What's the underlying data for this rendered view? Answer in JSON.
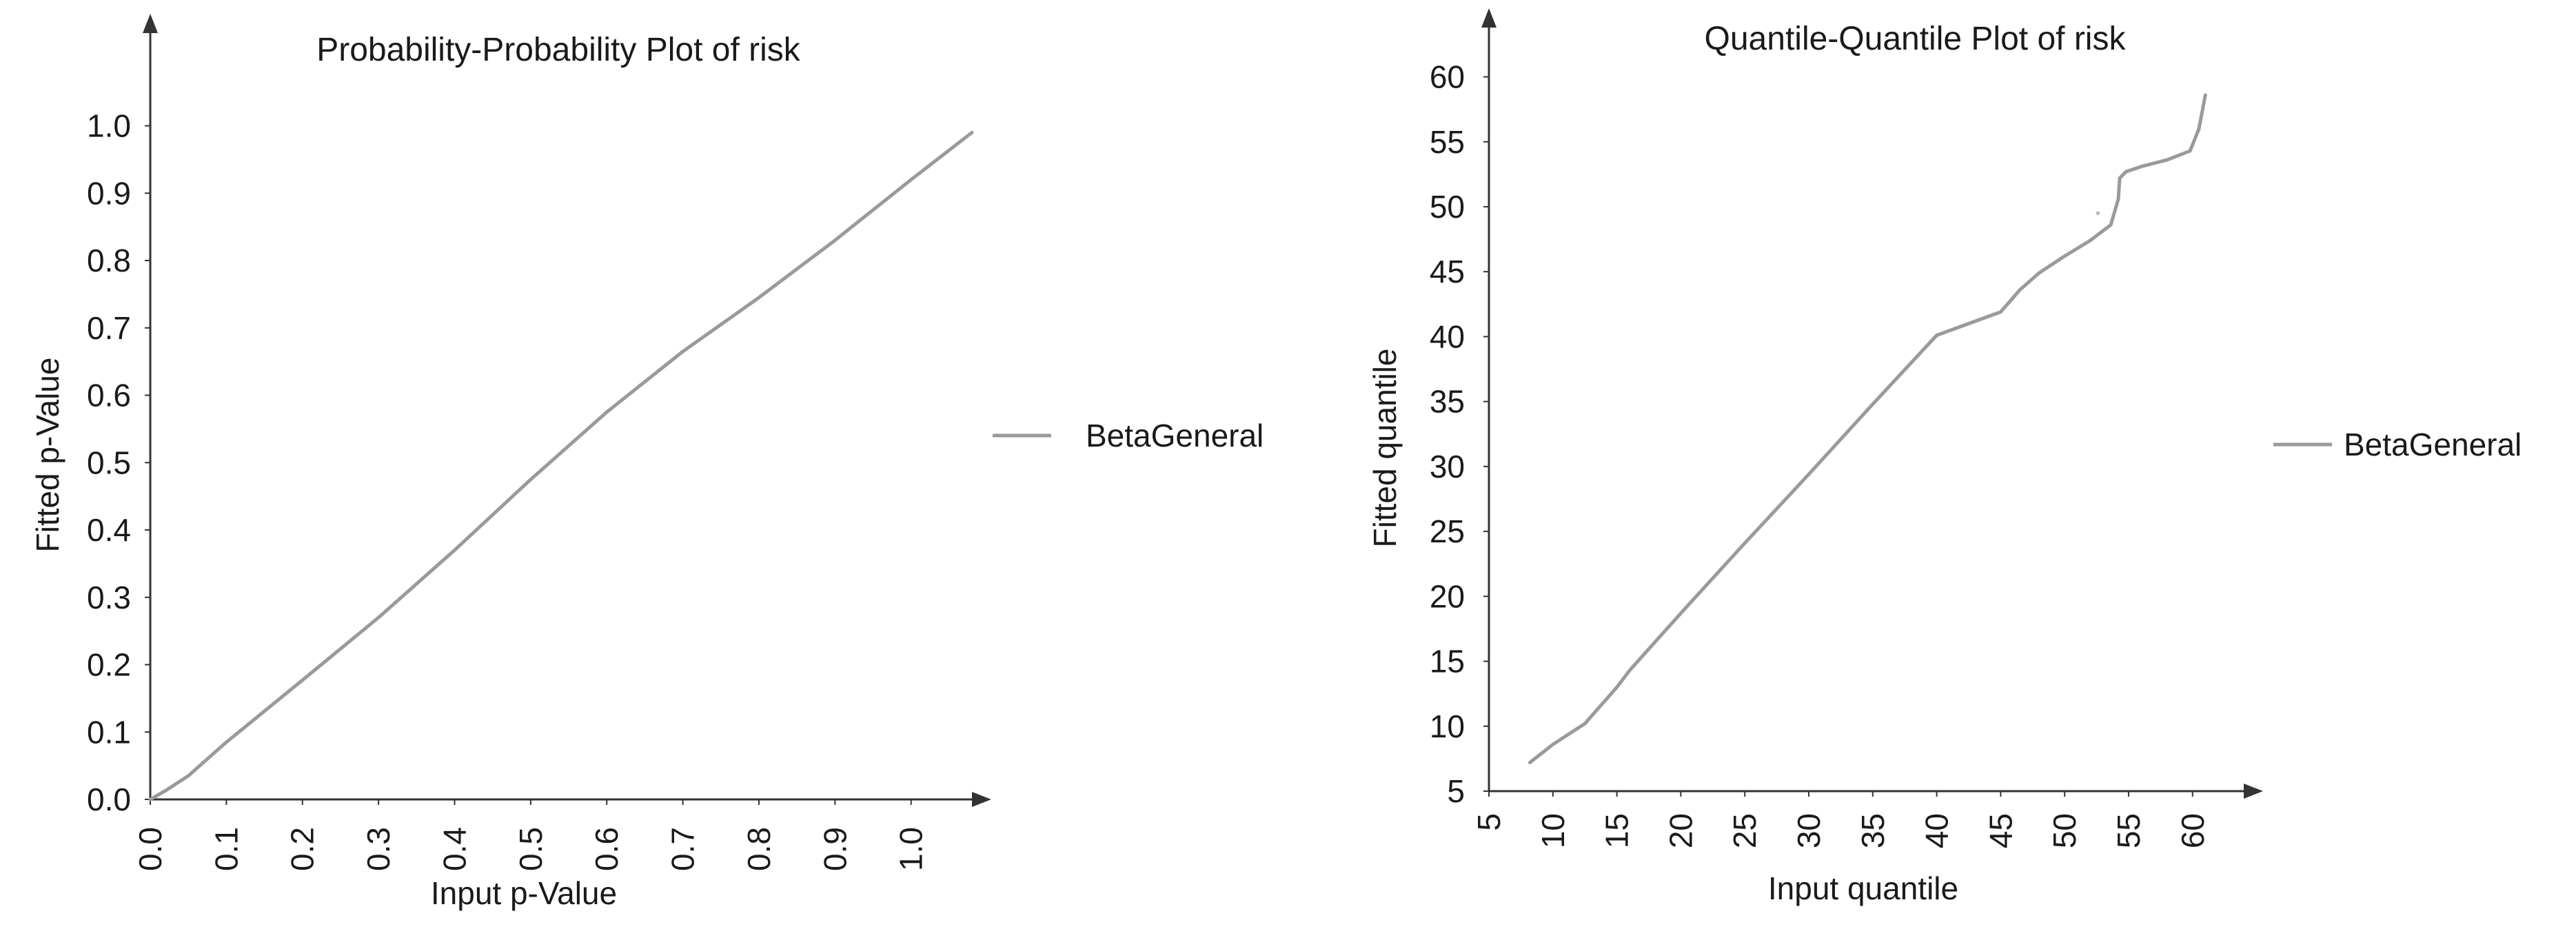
{
  "chart_data": [
    {
      "type": "line",
      "title": "Probability-Probability Plot of risk",
      "xlabel": "Input p-Value",
      "ylabel": "Fitted p-Value",
      "xlim": [
        0,
        1.08
      ],
      "ylim": [
        0,
        1.02
      ],
      "xticks": [
        "0.0",
        "0.1",
        "0.2",
        "0.3",
        "0.4",
        "0.5",
        "0.6",
        "0.7",
        "0.8",
        "0.9",
        "1.0"
      ],
      "yticks": [
        "0.0",
        "0.1",
        "0.2",
        "0.3",
        "0.4",
        "0.5",
        "0.6",
        "0.7",
        "0.8",
        "0.9",
        "1.0"
      ],
      "grid": false,
      "legend_position": "right",
      "line_color": "#9a9a9a",
      "series": [
        {
          "name": "BetaGeneral",
          "x": [
            0,
            0.02,
            0.05,
            0.1,
            0.2,
            0.3,
            0.4,
            0.5,
            0.6,
            0.7,
            0.8,
            0.9,
            1.0,
            1.04,
            1.08
          ],
          "y": [
            0,
            0.013,
            0.035,
            0.085,
            0.177,
            0.27,
            0.37,
            0.475,
            0.575,
            0.665,
            0.745,
            0.83,
            0.92,
            0.955,
            0.99
          ]
        }
      ]
    },
    {
      "type": "line",
      "title": "Quantile-Quantile Plot of risk",
      "xlabel": "Input quantile",
      "ylabel": "Fitted quantile",
      "xlim": [
        5,
        64
      ],
      "ylim": [
        5,
        63
      ],
      "xticks": [
        "5",
        "10",
        "15",
        "20",
        "25",
        "30",
        "35",
        "40",
        "45",
        "50",
        "55",
        "60"
      ],
      "yticks": [
        "5",
        "10",
        "15",
        "20",
        "25",
        "30",
        "35",
        "40",
        "45",
        "50",
        "55",
        "60"
      ],
      "grid": false,
      "legend_position": "right",
      "line_color": "#9a9a9a",
      "series": [
        {
          "name": "BetaGeneral",
          "x": [
            8.2,
            10,
            12.5,
            15,
            16,
            20,
            25,
            30,
            35,
            40,
            45,
            45.8,
            46.5,
            48,
            50,
            52,
            53.6,
            54.2,
            54.3,
            54.8,
            56,
            58,
            59.8,
            60.5,
            61.0
          ],
          "y": [
            7.2,
            8.6,
            10.2,
            13.0,
            14.3,
            18.7,
            24.1,
            29.4,
            34.8,
            40.1,
            41.9,
            42.8,
            43.6,
            44.9,
            46.2,
            47.4,
            48.6,
            50.6,
            52.2,
            52.7,
            53.1,
            53.6,
            54.3,
            56.0,
            58.6
          ]
        }
      ],
      "stray_point": {
        "x": 52.6,
        "y": 49.5
      }
    }
  ]
}
